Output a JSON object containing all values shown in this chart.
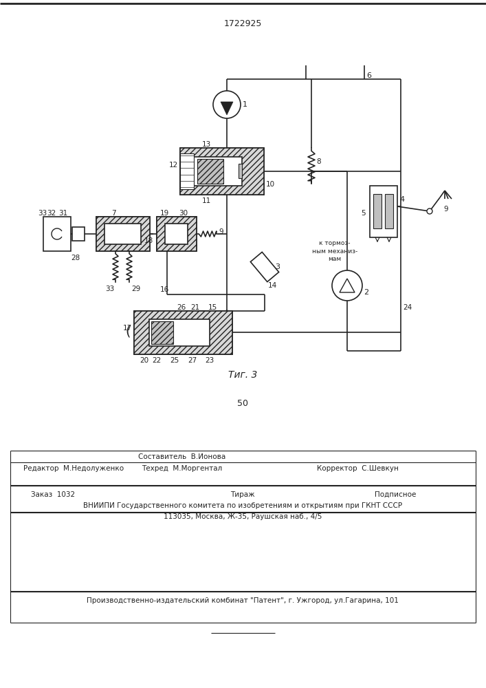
{
  "patent_number": "1722925",
  "fig_caption": "Τиг. 3",
  "page_num": "50",
  "composer": "Составитель  В.Ионова",
  "editor": "Редактор  М.Недолуженко",
  "techred": "Техред  М.Моргентал",
  "corrector": "Корректор  С.Шевкун",
  "order": "Заказ  1032",
  "tirazh": "Тираж",
  "podpisnoe": "Подписное",
  "vnipi": "ВНИИПИ Государственного комитета по изобретениям и открытиям при ГКНТ СССР",
  "address": "113035, Москва, Ж-35, Раушская наб., 4/5",
  "publisher": "Производственно-издательский комбинат \"Патент\", г. Ужгород, ул.Гагарина, 101",
  "tormoz": "к тормоз-\nным механиз-\nмам",
  "lc": "#222222",
  "lw": 1.2
}
